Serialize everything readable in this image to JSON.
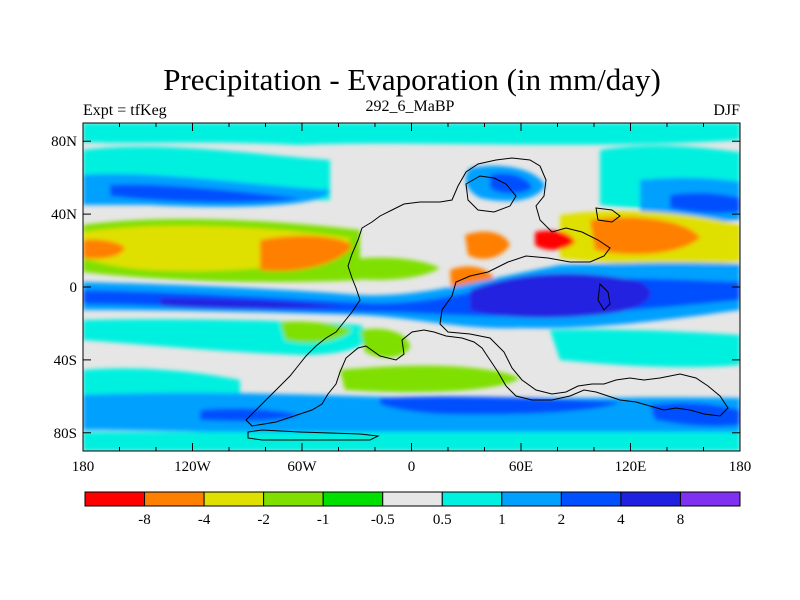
{
  "header": {
    "title": "Precipitation - Evaporation (in mm/day)",
    "left_label": "Expt = tfKeg",
    "center_label": "292_6_MaBP",
    "right_label": "DJF"
  },
  "map": {
    "x_ticks": [
      "180",
      "120W",
      "60W",
      "0",
      "60E",
      "120E",
      "180"
    ],
    "y_ticks": [
      "80N",
      "40N",
      "0",
      "40S",
      "80S"
    ],
    "x_tick_values": [
      -180,
      -120,
      -60,
      0,
      60,
      120,
      180
    ],
    "y_tick_values": [
      80,
      40,
      0,
      -40,
      -80
    ],
    "lon_range": [
      -180,
      180
    ],
    "lat_range": [
      -90,
      90
    ]
  },
  "legend": {
    "colors": [
      "#ff0000",
      "#ff7f00",
      "#e0e000",
      "#7fe000",
      "#00e000",
      "#e6e6e6",
      "#00f0e0",
      "#00a0ff",
      "#0050ff",
      "#2020e0",
      "#8030f0"
    ],
    "labels": [
      "-8",
      "-4",
      "-2",
      "-1",
      "-0.5",
      "0.5",
      "1",
      "2",
      "4",
      "8"
    ]
  }
}
